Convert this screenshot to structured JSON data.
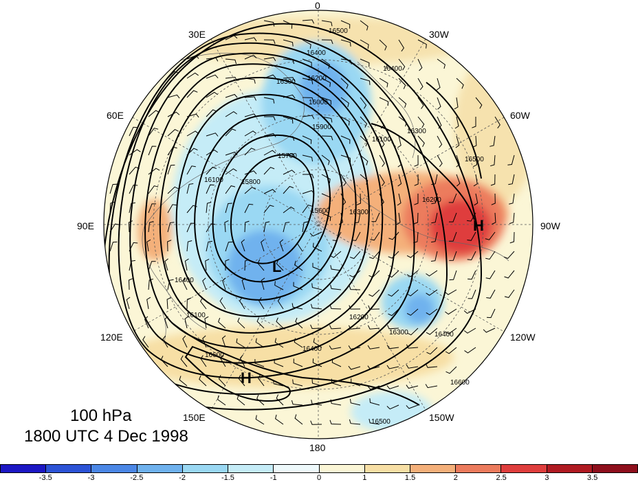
{
  "title": {
    "level": "100 hPa",
    "time": "1800 UTC 4 Dec 1998"
  },
  "longitude_labels": [
    {
      "text": "0"
    },
    {
      "text": "30W"
    },
    {
      "text": "60W"
    },
    {
      "text": "90W"
    },
    {
      "text": "120W"
    },
    {
      "text": "150W"
    },
    {
      "text": "180"
    },
    {
      "text": "150E"
    },
    {
      "text": "120E"
    },
    {
      "text": "90E"
    },
    {
      "text": "60E"
    },
    {
      "text": "30E"
    }
  ],
  "pressure_centers": [
    {
      "label": "L",
      "type": "low"
    },
    {
      "label": "H",
      "type": "high"
    },
    {
      "label": "H",
      "type": "high"
    }
  ],
  "contour_labels": [
    "16500",
    "16400",
    "16300",
    "16200",
    "16000",
    "15900",
    "15800",
    "15700",
    "15600",
    "16100",
    "16600",
    "16100",
    "16300",
    "16400",
    "16500",
    "16200",
    "16300",
    "16400",
    "16600",
    "16500",
    "16400",
    "16300",
    "16200",
    "16100",
    "16400"
  ],
  "colorbar": {
    "labels": [
      "-3.5",
      "-3",
      "-2.5",
      "-2",
      "-1.5",
      "-1",
      "0",
      "1",
      "1.5",
      "2",
      "2.5",
      "3",
      "3.5"
    ],
    "colors": [
      "#1c17c4",
      "#2c53d6",
      "#4b87e6",
      "#6fb2ee",
      "#9ad8f3",
      "#c5ecf7",
      "#eef9fb",
      "#fbf6d6",
      "#f7dfa5",
      "#f4b07a",
      "#ec7b5d",
      "#df3e3d",
      "#b01a22",
      "#8e0f1c"
    ]
  },
  "colors": {
    "low_anomaly": "#4b87e6",
    "high_anomaly": "#df3e3d",
    "background": "#ffffff"
  }
}
